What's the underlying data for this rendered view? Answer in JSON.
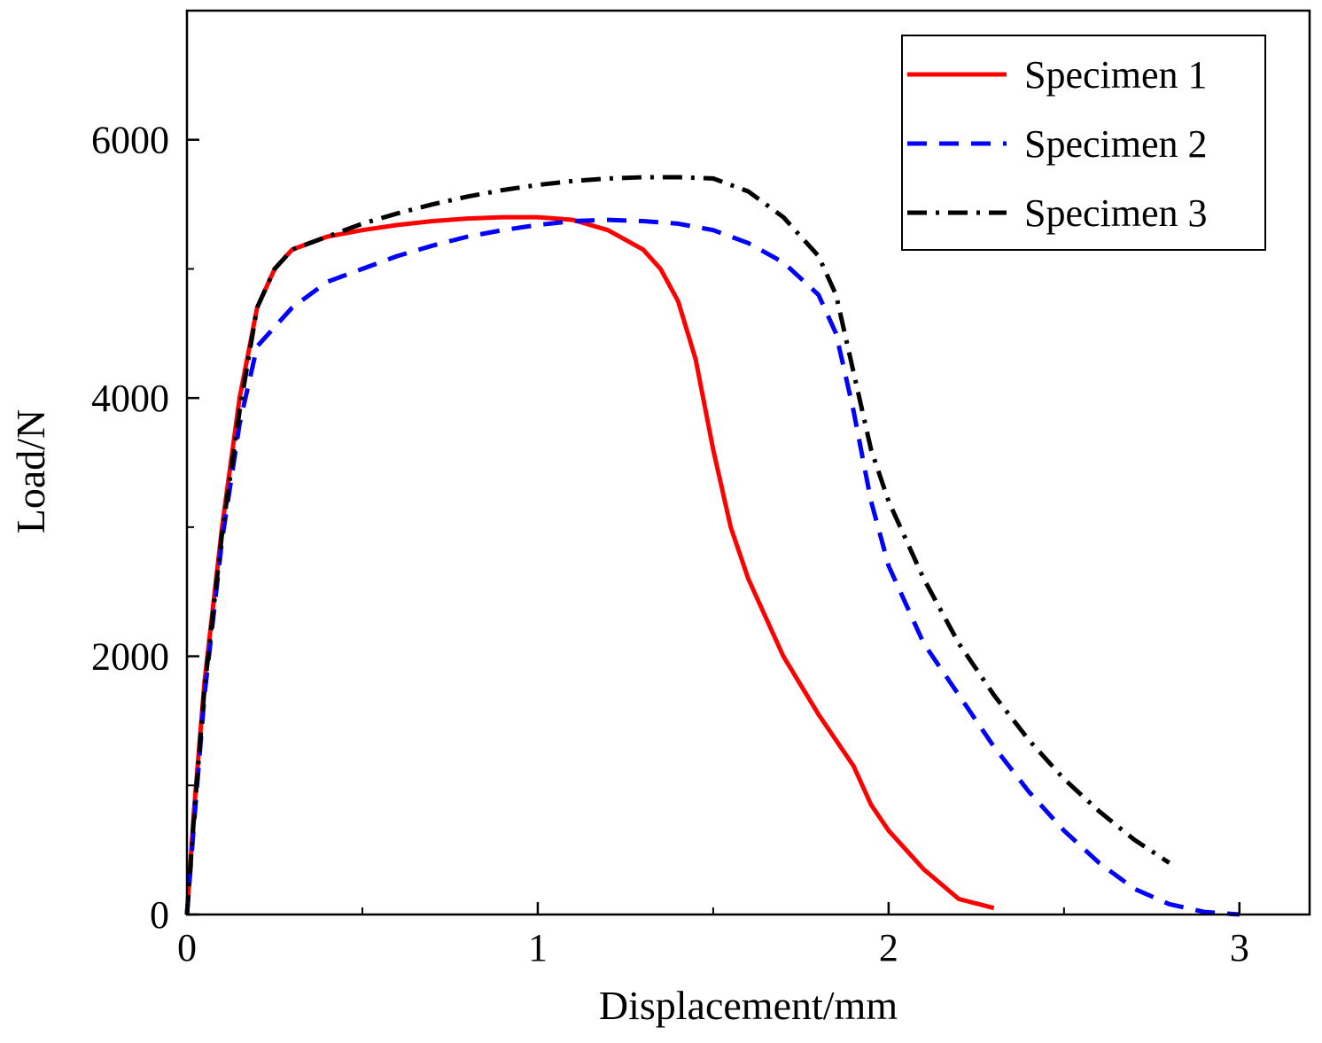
{
  "chart_data": {
    "type": "line",
    "title": "",
    "xlabel": "Displacement/mm",
    "ylabel": "Load/N",
    "xlim": [
      0,
      3.2
    ],
    "ylim": [
      0,
      7000
    ],
    "x_ticks": [
      {
        "value": 0,
        "label": "0"
      },
      {
        "value": 1,
        "label": "1"
      },
      {
        "value": 2,
        "label": "2"
      },
      {
        "value": 3,
        "label": "3"
      }
    ],
    "y_ticks": [
      {
        "value": 0,
        "label": "0"
      },
      {
        "value": 2000,
        "label": "2000"
      },
      {
        "value": 4000,
        "label": "4000"
      },
      {
        "value": 6000,
        "label": "6000"
      }
    ],
    "grid": false,
    "legend_position": "top-right",
    "series": [
      {
        "name": "Specimen 1",
        "color": "#ff0000",
        "style": "solid",
        "x": [
          0,
          0.02,
          0.05,
          0.1,
          0.15,
          0.2,
          0.25,
          0.3,
          0.4,
          0.5,
          0.6,
          0.7,
          0.8,
          0.9,
          1.0,
          1.1,
          1.2,
          1.3,
          1.35,
          1.4,
          1.45,
          1.5,
          1.55,
          1.6,
          1.7,
          1.8,
          1.9,
          1.95,
          2.0,
          2.1,
          2.2,
          2.3
        ],
        "y": [
          0,
          800,
          1800,
          3000,
          4000,
          4700,
          5000,
          5150,
          5250,
          5300,
          5340,
          5370,
          5390,
          5400,
          5400,
          5380,
          5300,
          5150,
          5000,
          4750,
          4300,
          3600,
          3000,
          2600,
          2000,
          1550,
          1150,
          850,
          650,
          350,
          120,
          50
        ]
      },
      {
        "name": "Specimen 2",
        "color": "#0000ff",
        "style": "dashed",
        "x": [
          0,
          0.02,
          0.05,
          0.1,
          0.15,
          0.2,
          0.25,
          0.3,
          0.4,
          0.5,
          0.6,
          0.7,
          0.8,
          0.9,
          1.0,
          1.1,
          1.2,
          1.3,
          1.4,
          1.5,
          1.6,
          1.7,
          1.8,
          1.85,
          1.9,
          1.95,
          2.0,
          2.1,
          2.2,
          2.3,
          2.4,
          2.5,
          2.6,
          2.7,
          2.8,
          2.9,
          3.0
        ],
        "y": [
          0,
          700,
          1700,
          2900,
          3800,
          4400,
          4550,
          4700,
          4900,
          5000,
          5100,
          5180,
          5250,
          5300,
          5340,
          5370,
          5380,
          5370,
          5350,
          5300,
          5200,
          5050,
          4800,
          4500,
          3900,
          3200,
          2700,
          2100,
          1700,
          1300,
          950,
          650,
          400,
          200,
          80,
          20,
          0
        ]
      },
      {
        "name": "Specimen 3",
        "color": "#000000",
        "style": "dash-dot",
        "x": [
          0,
          0.02,
          0.05,
          0.1,
          0.15,
          0.2,
          0.25,
          0.3,
          0.4,
          0.5,
          0.6,
          0.7,
          0.8,
          0.9,
          1.0,
          1.1,
          1.2,
          1.3,
          1.4,
          1.5,
          1.6,
          1.7,
          1.8,
          1.85,
          1.9,
          1.95,
          2.0,
          2.1,
          2.2,
          2.3,
          2.4,
          2.5,
          2.6,
          2.7,
          2.8
        ],
        "y": [
          0,
          750,
          1750,
          2950,
          3900,
          4700,
          5000,
          5150,
          5250,
          5350,
          5430,
          5500,
          5560,
          5610,
          5650,
          5680,
          5700,
          5710,
          5710,
          5700,
          5600,
          5400,
          5100,
          4800,
          4200,
          3600,
          3200,
          2600,
          2100,
          1700,
          1350,
          1050,
          800,
          580,
          400
        ]
      }
    ]
  }
}
